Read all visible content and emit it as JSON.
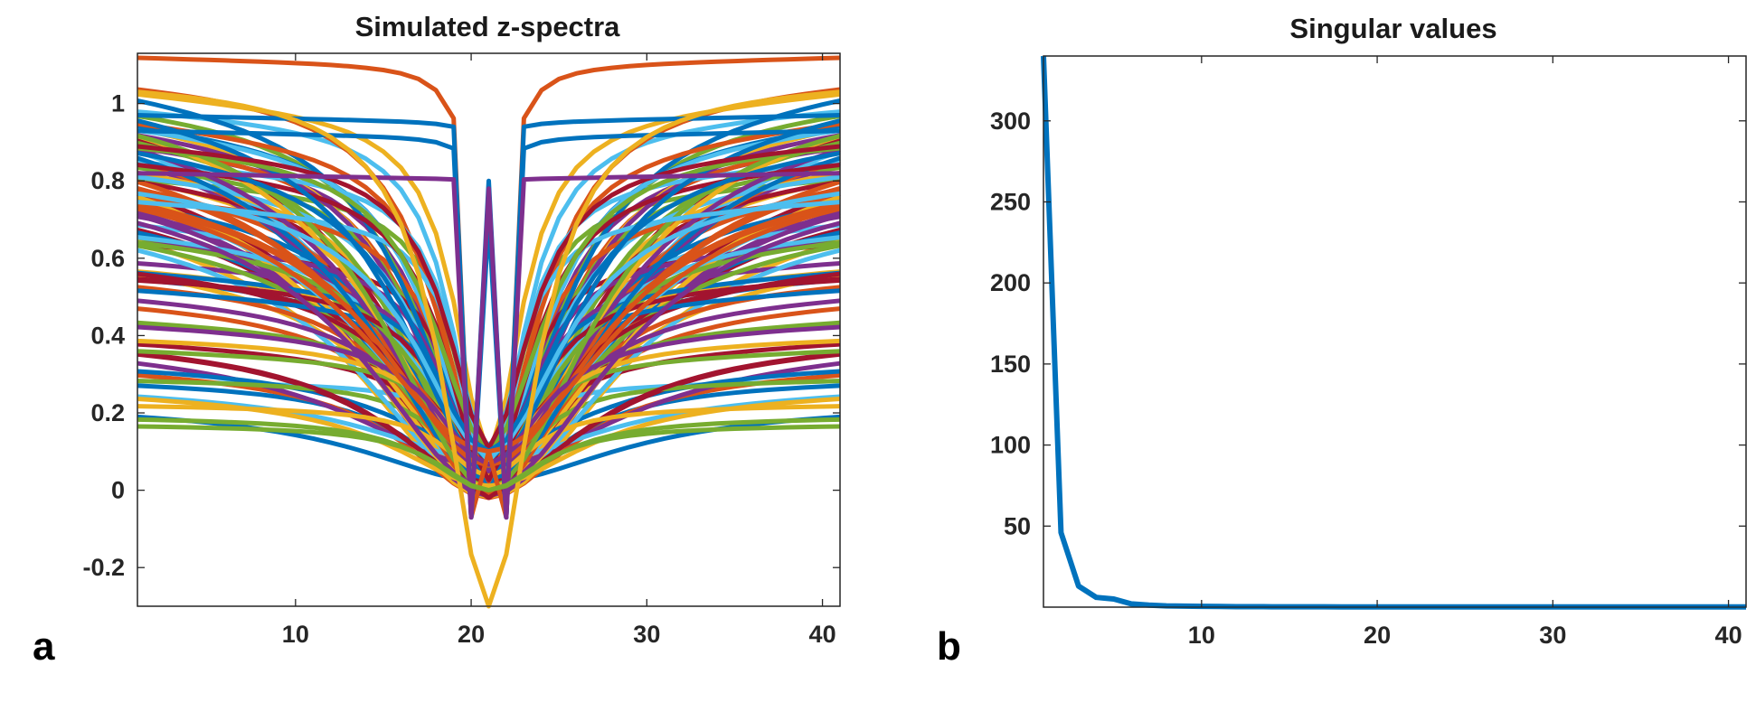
{
  "panel_labels": [
    "a",
    "b"
  ],
  "colors": [
    "#0072BD",
    "#D95319",
    "#EDB120",
    "#7E2F8E",
    "#77AC30",
    "#4DBEEE",
    "#A2142F"
  ],
  "chart_data": [
    {
      "type": "line",
      "title": "Simulated z-spectra",
      "xlabel": "",
      "ylabel": "",
      "xlim": [
        1,
        41
      ],
      "ylim": [
        -0.3,
        1.13
      ],
      "x_ticks": [
        10,
        20,
        30,
        40
      ],
      "y_ticks": [
        -0.2,
        0,
        0.2,
        0.4,
        0.6,
        0.8,
        1
      ],
      "y_tick_labels": [
        "-0.2",
        "0",
        "0.2",
        "0.4",
        "0.6",
        "0.8",
        "1"
      ],
      "grid": false,
      "x": [
        1,
        2,
        3,
        4,
        5,
        6,
        7,
        8,
        9,
        10,
        11,
        12,
        13,
        14,
        15,
        16,
        17,
        18,
        19,
        20,
        21,
        22,
        23,
        24,
        25,
        26,
        27,
        28,
        29,
        30,
        31,
        32,
        33,
        34,
        35,
        36,
        37,
        38,
        39,
        40,
        41
      ],
      "series_count": 100,
      "series_params": [
        {
          "plateau": 1.12,
          "center_value": 0.1,
          "width": 0.8,
          "color": "#D95319"
        },
        {
          "plateau": 0.97,
          "center_value": 0.8,
          "width": 0.6,
          "color": "#0072BD"
        },
        {
          "plateau": 0.93,
          "center_value": 0.7,
          "width": 0.8,
          "color": "#0072BD"
        },
        {
          "plateau": 0.82,
          "center_value": 0.78,
          "width": 0.5,
          "color": "#7E2F8E"
        },
        {
          "plateau": 1.06,
          "center_value": -0.3,
          "width": 3.0,
          "color": "#EDB120"
        },
        {
          "plateau": 0.19,
          "center_value": 0.0,
          "width": 4.0,
          "color": "#77AC30"
        },
        {
          "plateau": 0.17,
          "center_value": 0.0,
          "width": 3.5,
          "color": "#77AC30"
        }
      ],
      "note_levels": "remaining series span plateau 0.2 to 1.07 with dips toward 0 near x=21"
    },
    {
      "type": "line",
      "title": "Singular values",
      "xlabel": "",
      "ylabel": "",
      "xlim": [
        1,
        41
      ],
      "ylim": [
        0,
        340
      ],
      "x_ticks": [
        10,
        20,
        30,
        40
      ],
      "y_ticks": [
        50,
        100,
        150,
        200,
        250,
        300
      ],
      "grid": false,
      "series": [
        {
          "color": "#0072BD",
          "x": [
            1,
            2,
            3,
            4,
            5,
            6,
            7,
            8,
            9,
            10,
            11,
            12,
            13,
            14,
            15,
            16,
            17,
            18,
            19,
            20,
            21,
            22,
            23,
            24,
            25,
            26,
            27,
            28,
            29,
            30,
            31,
            32,
            33,
            34,
            35,
            36,
            37,
            38,
            39,
            40,
            41
          ],
          "values": [
            340,
            46,
            13,
            6,
            5,
            2,
            1.2,
            0.8,
            0.6,
            0.5,
            0.4,
            0.3,
            0.3,
            0.2,
            0.2,
            0.2,
            0.2,
            0.1,
            0.1,
            0.1,
            0.1,
            0.1,
            0.1,
            0.1,
            0.1,
            0.1,
            0.1,
            0.1,
            0.1,
            0.1,
            0.1,
            0.1,
            0.1,
            0.1,
            0.1,
            0.1,
            0.1,
            0.1,
            0.1,
            0.1,
            0.1
          ]
        }
      ]
    }
  ]
}
